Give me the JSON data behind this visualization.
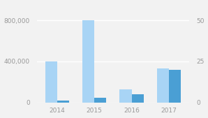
{
  "categories": [
    2014,
    2015,
    2016,
    2017
  ],
  "primary_values": [
    400000,
    800000,
    130000,
    330000
  ],
  "secondary_values": [
    1,
    3,
    5,
    20
  ],
  "primary_color": "#a8d4f5",
  "secondary_color": "#4a9fd4",
  "left_ylim": [
    0,
    960000
  ],
  "right_ylim": [
    0,
    60
  ],
  "left_yticks": [
    0,
    400000,
    800000
  ],
  "right_yticks": [
    0,
    25,
    50
  ],
  "background_color": "#f2f2f2",
  "bar_width": 0.32,
  "fontsize": 6.5
}
